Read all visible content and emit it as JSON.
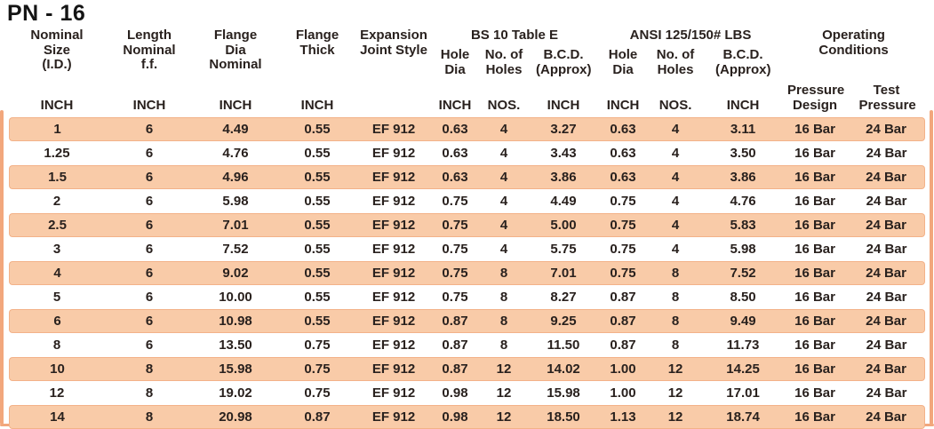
{
  "title": "PN - 16",
  "colors": {
    "row_stripe": "#f9cba8",
    "stripe_edge": "#f3b289",
    "accent_line": "#f2a77c",
    "text": "#29211e"
  },
  "headers": {
    "nominal_size": "Nominal Size (I.D.)",
    "length_nominal": "Length Nominal f.f.",
    "flange_dia": "Flange Dia Nominal",
    "flange_thick": "Flange Thick",
    "expansion_joint": "Expansion Joint Style",
    "group_bs10": "BS 10 Table E",
    "group_ansi": "ANSI 125/150# LBS",
    "group_operating": "Operating Conditions",
    "hole_dia": "Hole Dia",
    "no_of_holes": "No. of Holes",
    "bcd_approx": "B.C.D. (Approx)",
    "pressure_design": "Pressure Design",
    "test_pressure": "Test Pressure",
    "unit_inch": "INCH",
    "unit_nos": "NOS."
  },
  "table": {
    "rows": [
      {
        "cells": [
          "1",
          "6",
          "4.49",
          "0.55",
          "EF 912",
          "0.63",
          "4",
          "3.27",
          "0.63",
          "4",
          "3.11",
          "16 Bar",
          "24 Bar"
        ]
      },
      {
        "cells": [
          "1.25",
          "6",
          "4.76",
          "0.55",
          "EF 912",
          "0.63",
          "4",
          "3.43",
          "0.63",
          "4",
          "3.50",
          "16 Bar",
          "24 Bar"
        ]
      },
      {
        "cells": [
          "1.5",
          "6",
          "4.96",
          "0.55",
          "EF 912",
          "0.63",
          "4",
          "3.86",
          "0.63",
          "4",
          "3.86",
          "16 Bar",
          "24 Bar"
        ]
      },
      {
        "cells": [
          "2",
          "6",
          "5.98",
          "0.55",
          "EF 912",
          "0.75",
          "4",
          "4.49",
          "0.75",
          "4",
          "4.76",
          "16 Bar",
          "24 Bar"
        ]
      },
      {
        "cells": [
          "2.5",
          "6",
          "7.01",
          "0.55",
          "EF 912",
          "0.75",
          "4",
          "5.00",
          "0.75",
          "4",
          "5.83",
          "16 Bar",
          "24 Bar"
        ]
      },
      {
        "cells": [
          "3",
          "6",
          "7.52",
          "0.55",
          "EF 912",
          "0.75",
          "4",
          "5.75",
          "0.75",
          "4",
          "5.98",
          "16 Bar",
          "24 Bar"
        ]
      },
      {
        "cells": [
          "4",
          "6",
          "9.02",
          "0.55",
          "EF 912",
          "0.75",
          "8",
          "7.01",
          "0.75",
          "8",
          "7.52",
          "16 Bar",
          "24 Bar"
        ]
      },
      {
        "cells": [
          "5",
          "6",
          "10.00",
          "0.55",
          "EF 912",
          "0.75",
          "8",
          "8.27",
          "0.87",
          "8",
          "8.50",
          "16 Bar",
          "24 Bar"
        ]
      },
      {
        "cells": [
          "6",
          "6",
          "10.98",
          "0.55",
          "EF 912",
          "0.87",
          "8",
          "9.25",
          "0.87",
          "8",
          "9.49",
          "16 Bar",
          "24 Bar"
        ]
      },
      {
        "cells": [
          "8",
          "6",
          "13.50",
          "0.75",
          "EF 912",
          "0.87",
          "8",
          "11.50",
          "0.87",
          "8",
          "11.73",
          "16 Bar",
          "24 Bar"
        ]
      },
      {
        "cells": [
          "10",
          "8",
          "15.98",
          "0.75",
          "EF 912",
          "0.87",
          "12",
          "14.02",
          "1.00",
          "12",
          "14.25",
          "16 Bar",
          "24 Bar"
        ]
      },
      {
        "cells": [
          "12",
          "8",
          "19.02",
          "0.75",
          "EF 912",
          "0.98",
          "12",
          "15.98",
          "1.00",
          "12",
          "17.01",
          "16 Bar",
          "24 Bar"
        ]
      },
      {
        "cells": [
          "14",
          "8",
          "20.98",
          "0.87",
          "EF 912",
          "0.98",
          "12",
          "18.50",
          "1.13",
          "12",
          "18.74",
          "16 Bar",
          "24 Bar"
        ]
      }
    ]
  }
}
